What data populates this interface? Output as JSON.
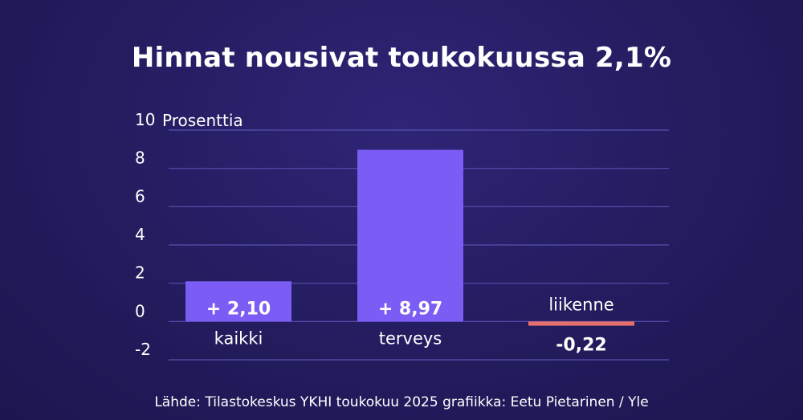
{
  "title": "Hinnat nousivat toukokuussa 2,1%",
  "source": "Lähde: Tilastokeskus YKHI toukokuu 2025 grafiikka: Eetu Pietarinen / Yle",
  "colors": {
    "positive_bar": "#7b5cf5",
    "negative_bar": "#e8706c",
    "gridline": "#5a4fb0",
    "text": "#ffffff"
  },
  "chart_data": {
    "type": "bar",
    "title": "Hinnat nousivat toukokuussa 2,1%",
    "ylabel": "Prosenttia",
    "ylim": [
      -2,
      10
    ],
    "yticks": [
      10,
      8,
      6,
      4,
      2,
      0,
      -2
    ],
    "grid": true,
    "categories": [
      "kaikki",
      "terveys",
      "liikenne"
    ],
    "values": [
      2.1,
      8.97,
      -0.22
    ],
    "value_labels": [
      "+ 2,10",
      "+ 8,97",
      "-0,22"
    ]
  }
}
